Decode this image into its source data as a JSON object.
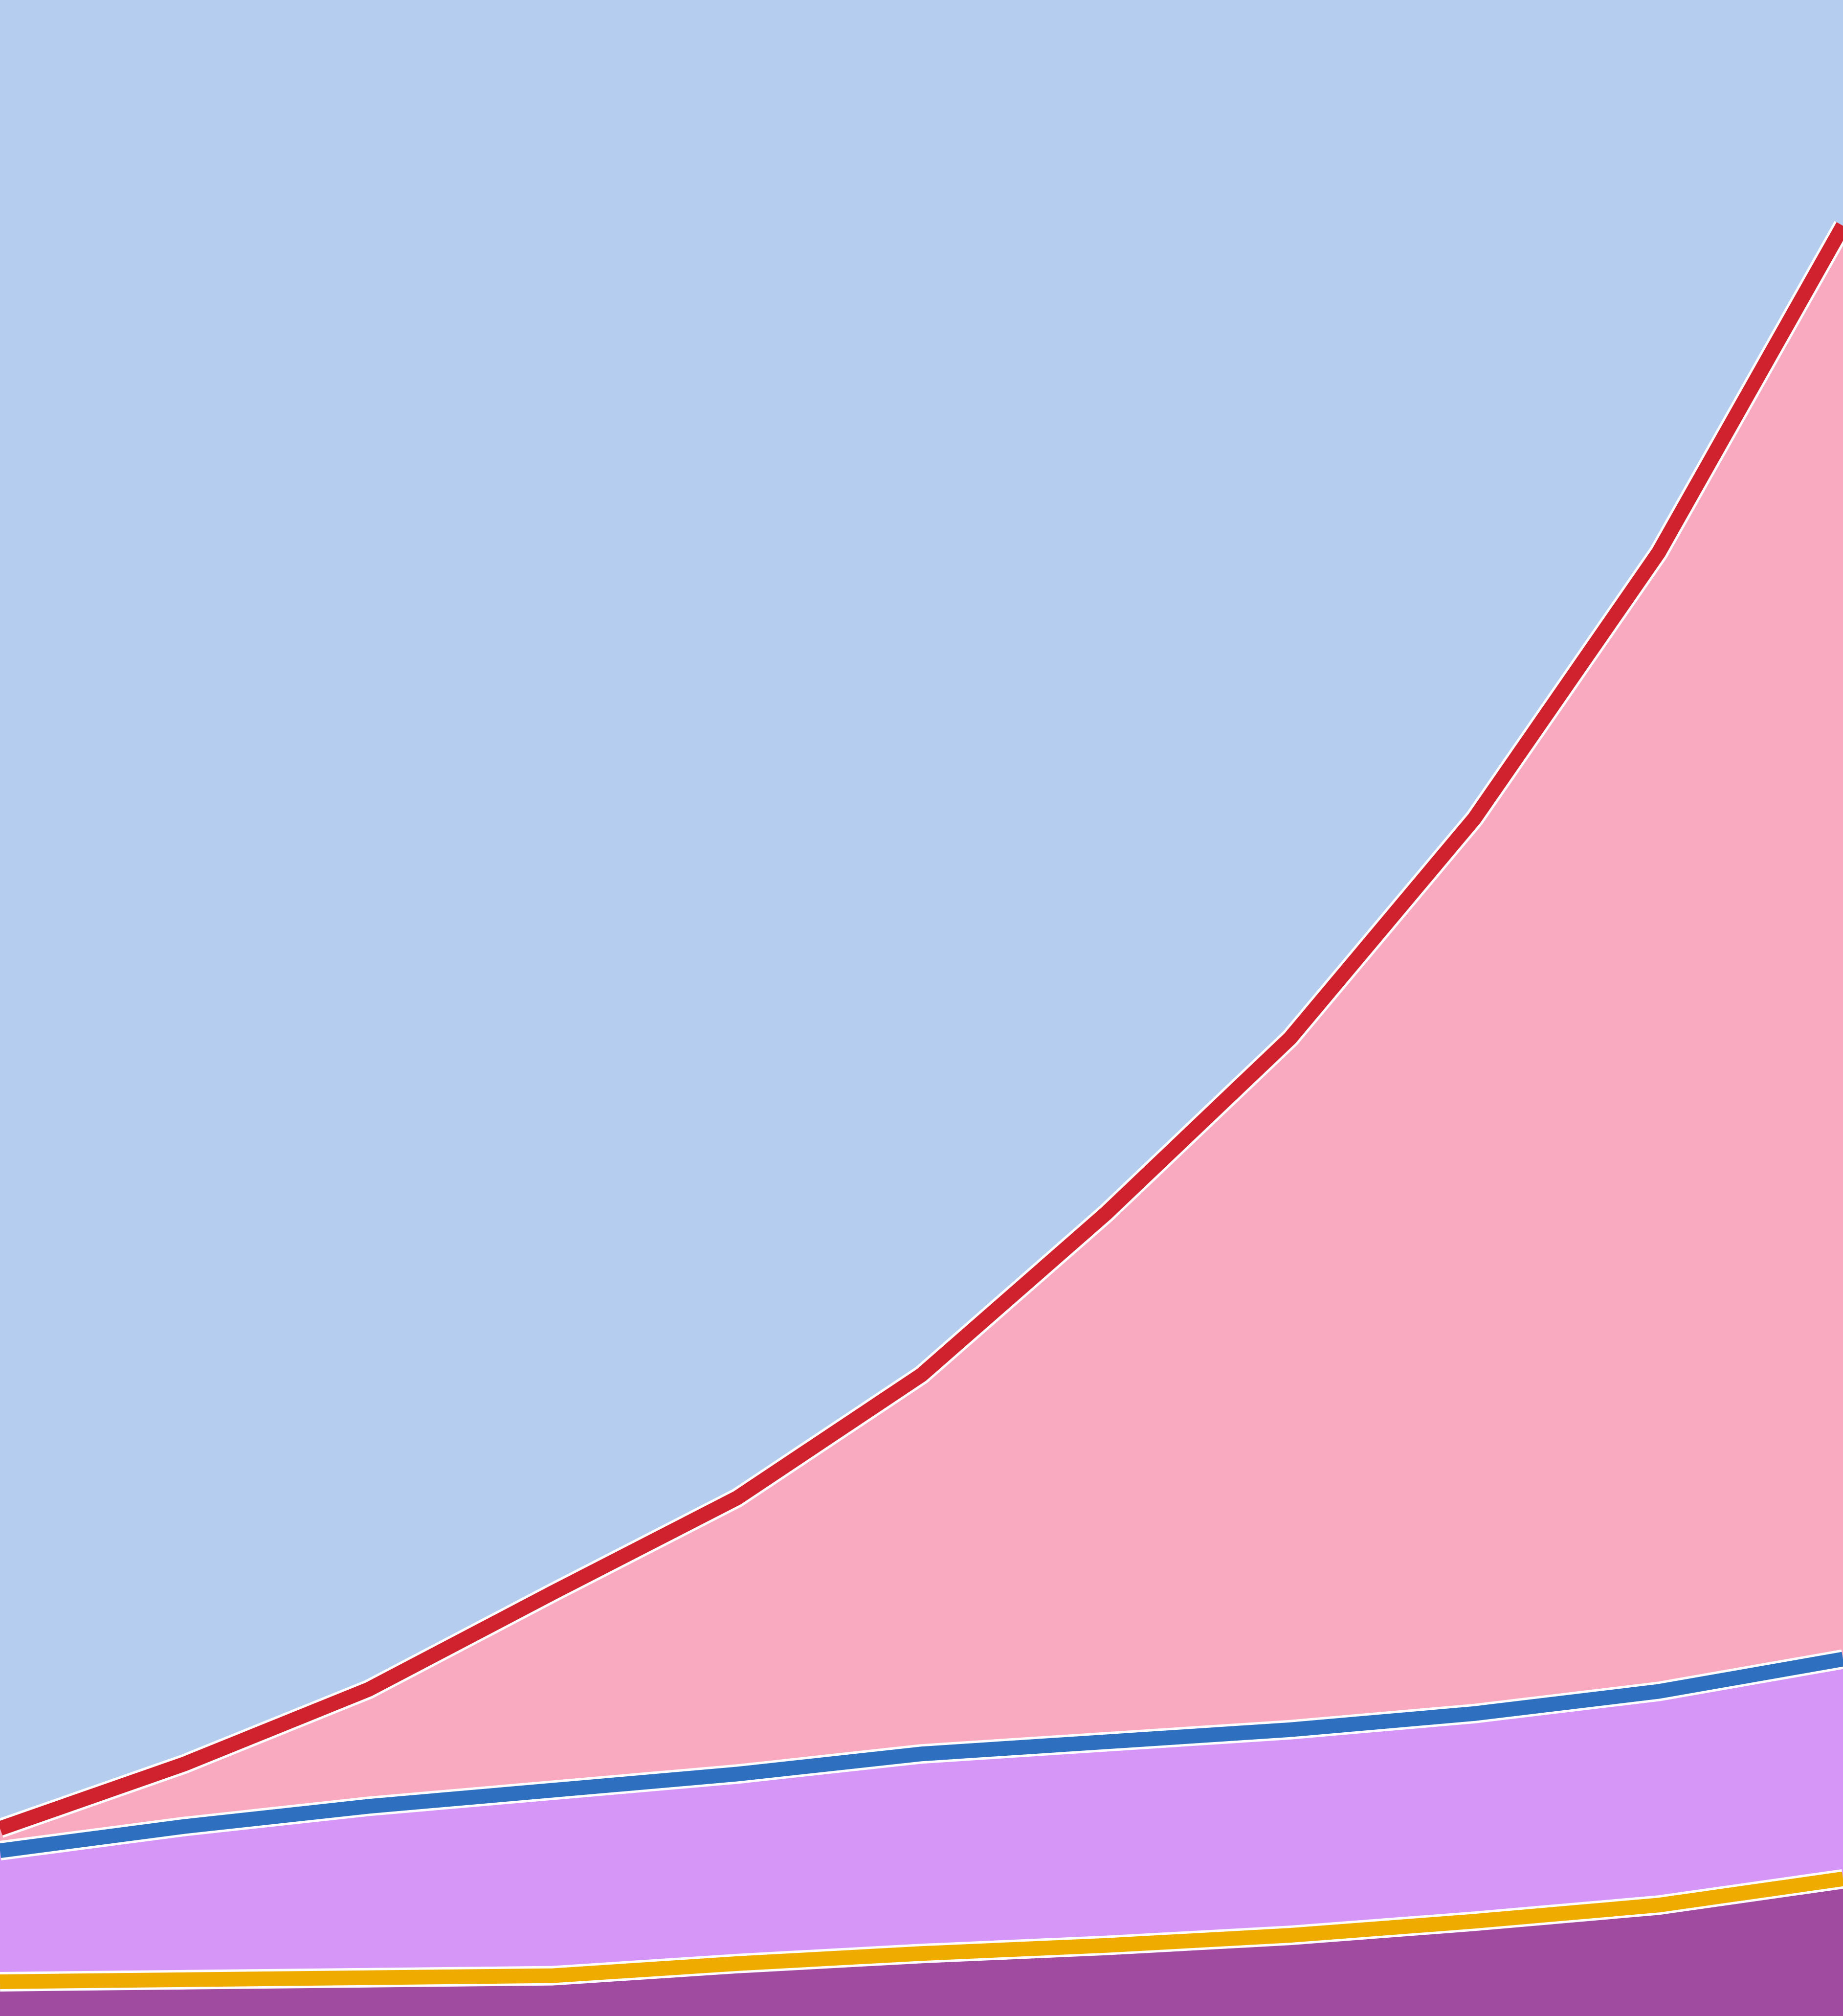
{
  "chart_data": {
    "type": "line",
    "background": "#b5cdee",
    "x": [
      0,
      10,
      20,
      30,
      40,
      50,
      60,
      70,
      80,
      90,
      100
    ],
    "xlim": [
      0,
      100
    ],
    "ylim": [
      0,
      100
    ],
    "series": [
      {
        "color": "#d0222e",
        "fill": "#f9aac0",
        "values": [
          9.3,
          12.5,
          16.2,
          21.0,
          25.7,
          31.8,
          39.8,
          48.5,
          59.4,
          72.6,
          88.8
        ]
      },
      {
        "color": "#2e6fc0",
        "fill": "#d596f8",
        "values": [
          8.2,
          9.4,
          10.4,
          11.2,
          12.0,
          13.0,
          13.6,
          14.2,
          15.0,
          16.1,
          17.7
        ]
      },
      {
        "color": "#f0ab00",
        "fill": "#a04aa0",
        "values": [
          1.7,
          1.8,
          1.9,
          2.0,
          2.6,
          3.1,
          3.5,
          4.0,
          4.7,
          5.5,
          6.8
        ]
      }
    ]
  }
}
